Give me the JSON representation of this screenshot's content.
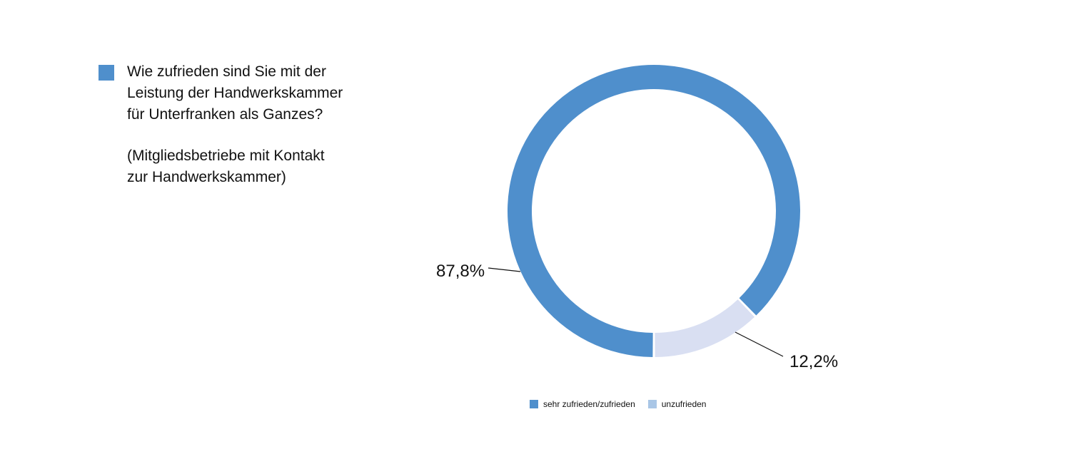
{
  "question": {
    "text": "Wie zufrieden sind Sie mit der\nLeistung der Handwerkskammer\nfür Unterfranken als Ganzes?",
    "subtext": "(Mitgliedsbetriebe mit Kontakt\nzur Handwerkskammer)",
    "marker_color": "#4f8fcc"
  },
  "chart_data": {
    "type": "pie",
    "variant": "donut",
    "slices": [
      {
        "name": "sehr zufrieden/zufrieden",
        "value": 87.8,
        "label": "87,8%",
        "color": "#4f8fcc"
      },
      {
        "name": "unzufrieden",
        "value": 12.2,
        "label": "12,2%",
        "color": "#d9dff2"
      }
    ],
    "legend": {
      "placement": "bottom",
      "items": [
        {
          "label": "sehr zufrieden/zufrieden",
          "color": "#4f8fcc"
        },
        {
          "label": "unzufrieden",
          "color": "#a9c6e6"
        }
      ]
    }
  }
}
